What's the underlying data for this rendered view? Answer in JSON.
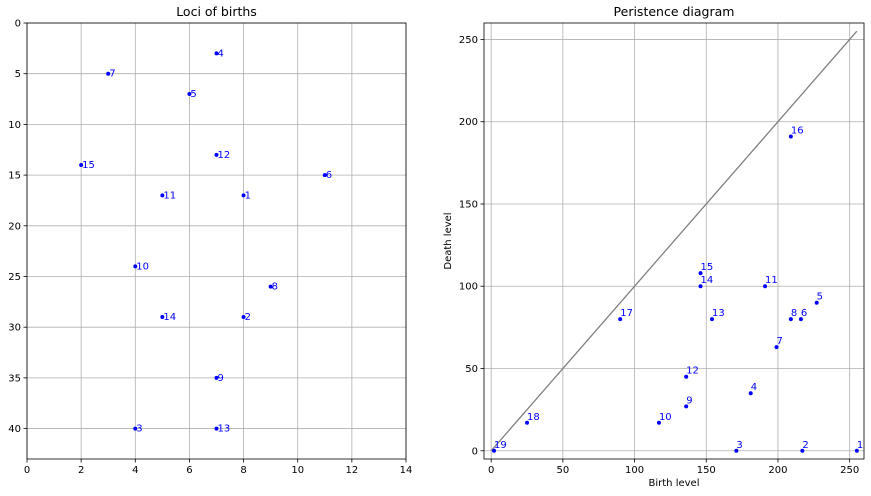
{
  "chart_data": [
    {
      "type": "scatter",
      "title": "Loci of births",
      "xlabel": "",
      "ylabel": "",
      "xlim": [
        0,
        14
      ],
      "ylim": [
        43,
        0
      ],
      "y_inverted": true,
      "grid": true,
      "x_ticks": [
        0,
        2,
        4,
        6,
        8,
        10,
        12,
        14
      ],
      "y_ticks": [
        0,
        5,
        10,
        15,
        20,
        25,
        30,
        35,
        40
      ],
      "marker_color": "#0000ff",
      "label_color": "#0000ff",
      "points": [
        {
          "label": "1",
          "x": 8,
          "y": 17
        },
        {
          "label": "2",
          "x": 8,
          "y": 29
        },
        {
          "label": "3",
          "x": 4,
          "y": 40
        },
        {
          "label": "4",
          "x": 7,
          "y": 3
        },
        {
          "label": "5",
          "x": 6,
          "y": 7
        },
        {
          "label": "6",
          "x": 11,
          "y": 15
        },
        {
          "label": "7",
          "x": 3,
          "y": 5
        },
        {
          "label": "8",
          "x": 9,
          "y": 26
        },
        {
          "label": "9",
          "x": 7,
          "y": 35
        },
        {
          "label": "10",
          "x": 4,
          "y": 24
        },
        {
          "label": "11",
          "x": 5,
          "y": 17
        },
        {
          "label": "12",
          "x": 7,
          "y": 13
        },
        {
          "label": "13",
          "x": 7,
          "y": 40
        },
        {
          "label": "14",
          "x": 5,
          "y": 29
        },
        {
          "label": "15",
          "x": 2,
          "y": 14
        }
      ]
    },
    {
      "type": "scatter",
      "title": "Peristence diagram",
      "xlabel": "Birth level",
      "ylabel": "Death level",
      "xlim": [
        -5,
        260
      ],
      "ylim": [
        -5,
        260
      ],
      "grid": true,
      "x_ticks": [
        0,
        50,
        100,
        150,
        200,
        250
      ],
      "y_ticks": [
        0,
        50,
        100,
        150,
        200,
        250
      ],
      "diagonal": {
        "from": [
          0,
          0
        ],
        "to": [
          255,
          255
        ],
        "color": "#808080"
      },
      "marker_color": "#0000ff",
      "label_color": "#0000ff",
      "points": [
        {
          "label": "1",
          "x": 255,
          "y": 0
        },
        {
          "label": "2",
          "x": 217,
          "y": 0
        },
        {
          "label": "3",
          "x": 171,
          "y": 0
        },
        {
          "label": "4",
          "x": 181,
          "y": 35
        },
        {
          "label": "5",
          "x": 227,
          "y": 90
        },
        {
          "label": "6",
          "x": 216,
          "y": 80
        },
        {
          "label": "7",
          "x": 199,
          "y": 63
        },
        {
          "label": "8",
          "x": 209,
          "y": 80
        },
        {
          "label": "9",
          "x": 136,
          "y": 27
        },
        {
          "label": "10",
          "x": 117,
          "y": 17
        },
        {
          "label": "11",
          "x": 191,
          "y": 100
        },
        {
          "label": "12",
          "x": 136,
          "y": 45
        },
        {
          "label": "13",
          "x": 154,
          "y": 80
        },
        {
          "label": "14",
          "x": 146,
          "y": 100
        },
        {
          "label": "15",
          "x": 146,
          "y": 108
        },
        {
          "label": "16",
          "x": 209,
          "y": 191
        },
        {
          "label": "17",
          "x": 90,
          "y": 80
        },
        {
          "label": "18",
          "x": 25,
          "y": 17
        },
        {
          "label": "19",
          "x": 2,
          "y": 0
        }
      ]
    }
  ]
}
